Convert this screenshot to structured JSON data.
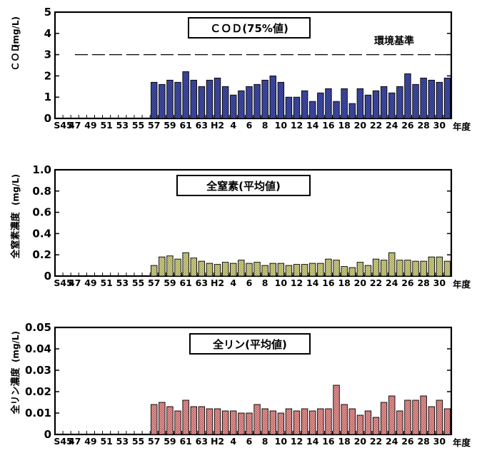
{
  "chart_data": [
    {
      "type": "bar",
      "title": "ＣＯＤ(75%値)",
      "ylabel": "ＣＯＤ",
      "yunit": "(mg/L)",
      "xunit": "年度",
      "ylim": [
        0,
        5
      ],
      "yticks": [
        "0",
        "1",
        "2",
        "3",
        "4",
        "5"
      ],
      "xticklabels": [
        "S45",
        "47",
        "49",
        "51",
        "53",
        "55",
        "57",
        "59",
        "61",
        "63",
        "H2",
        "4",
        "6",
        "8",
        "10",
        "12",
        "14",
        "16",
        "18",
        "20",
        "22",
        "24",
        "26",
        "28",
        "30"
      ],
      "standard": {
        "label": "環境基準",
        "value": 3
      },
      "color": "#4a55b4",
      "values": [
        null,
        null,
        null,
        null,
        null,
        null,
        null,
        null,
        null,
        null,
        null,
        null,
        1.7,
        1.6,
        1.8,
        1.7,
        2.2,
        1.8,
        1.5,
        1.8,
        1.9,
        1.5,
        1.1,
        1.3,
        1.5,
        1.6,
        1.8,
        2.0,
        1.7,
        1.0,
        1.0,
        1.3,
        0.8,
        1.2,
        1.4,
        0.8,
        1.4,
        0.7,
        1.4,
        1.1,
        1.3,
        1.5,
        1.2,
        1.5,
        2.1,
        1.6,
        1.9,
        1.8,
        1.7,
        1.9
      ]
    },
    {
      "type": "bar",
      "title": "全窒素(平均値)",
      "ylabel": "全窒素濃度",
      "yunit": "(mg/L)",
      "xunit": "年度",
      "ylim": [
        0,
        1.0
      ],
      "yticks": [
        "0",
        "0.2",
        "0.4",
        "0.6",
        "0.8",
        "1.0"
      ],
      "xticklabels": [
        "S45",
        "47",
        "49",
        "51",
        "53",
        "55",
        "57",
        "59",
        "61",
        "63",
        "H2",
        "4",
        "6",
        "8",
        "10",
        "12",
        "14",
        "16",
        "18",
        "20",
        "22",
        "24",
        "26",
        "28",
        "30"
      ],
      "color": "#cccc80",
      "values": [
        null,
        null,
        null,
        null,
        null,
        null,
        null,
        null,
        null,
        null,
        null,
        null,
        0.1,
        0.18,
        0.19,
        0.16,
        0.22,
        0.17,
        0.14,
        0.12,
        0.11,
        0.13,
        0.12,
        0.15,
        0.12,
        0.13,
        0.1,
        0.12,
        0.12,
        0.1,
        0.11,
        0.11,
        0.12,
        0.12,
        0.16,
        0.15,
        0.09,
        0.08,
        0.13,
        0.1,
        0.16,
        0.15,
        0.22,
        0.15,
        0.15,
        0.14,
        0.14,
        0.18,
        0.18,
        0.14
      ]
    },
    {
      "type": "bar",
      "title": "全リン(平均値)",
      "ylabel": "全リン濃度",
      "yunit": "(mg/L)",
      "xunit": "年度",
      "ylim": [
        0,
        0.05
      ],
      "yticks": [
        "0",
        "0.01",
        "0.02",
        "0.03",
        "0.04",
        "0.05"
      ],
      "xticklabels": [
        "S45",
        "47",
        "49",
        "51",
        "53",
        "55",
        "57",
        "59",
        "61",
        "63",
        "H2",
        "4",
        "6",
        "8",
        "10",
        "12",
        "14",
        "16",
        "18",
        "20",
        "22",
        "24",
        "26",
        "28",
        "30"
      ],
      "color": "#e08a8a",
      "values": [
        null,
        null,
        null,
        null,
        null,
        null,
        null,
        null,
        null,
        null,
        null,
        null,
        0.014,
        0.015,
        0.013,
        0.011,
        0.016,
        0.013,
        0.013,
        0.012,
        0.012,
        0.011,
        0.011,
        0.01,
        0.01,
        0.014,
        0.012,
        0.011,
        0.01,
        0.012,
        0.011,
        0.012,
        0.011,
        0.012,
        0.012,
        0.023,
        0.014,
        0.012,
        0.009,
        0.011,
        0.008,
        0.015,
        0.018,
        0.011,
        0.016,
        0.016,
        0.018,
        0.013,
        0.016,
        0.012
      ]
    }
  ]
}
